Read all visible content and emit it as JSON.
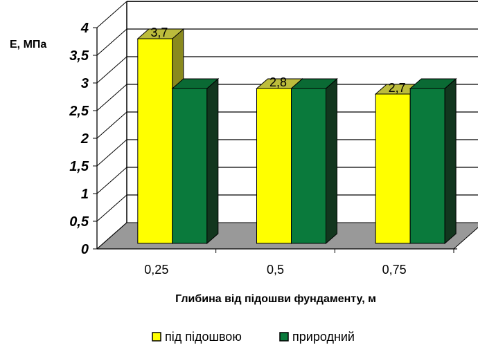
{
  "chart_data": {
    "type": "bar",
    "categories": [
      "0,25",
      "0,5",
      "0,75"
    ],
    "series": [
      {
        "name": "під підошвою",
        "values": [
          3.7,
          2.8,
          2.7
        ],
        "labels": [
          "3,7",
          "2,8",
          "2,7"
        ],
        "color": "#ffff00",
        "side_color": "#8a8a1e",
        "top_color": "#bcbc3c"
      },
      {
        "name": "природний",
        "values": [
          2.8,
          2.8,
          2.8
        ],
        "labels": [
          "",
          "",
          ""
        ],
        "color": "#0a7a3c",
        "side_color": "#12361e",
        "top_color": "#0a6a34"
      }
    ],
    "y_ticks": [
      "0",
      "0,5",
      "1",
      "1,5",
      "2",
      "2,5",
      "3",
      "3,5",
      "4"
    ],
    "ylabel": "E, МПа",
    "xlabel": "Глибина від підошви фундаменту, м",
    "ylim": [
      0,
      4
    ],
    "grid": true,
    "legend_position": "bottom",
    "floor_color": "#999999",
    "3d": true
  }
}
